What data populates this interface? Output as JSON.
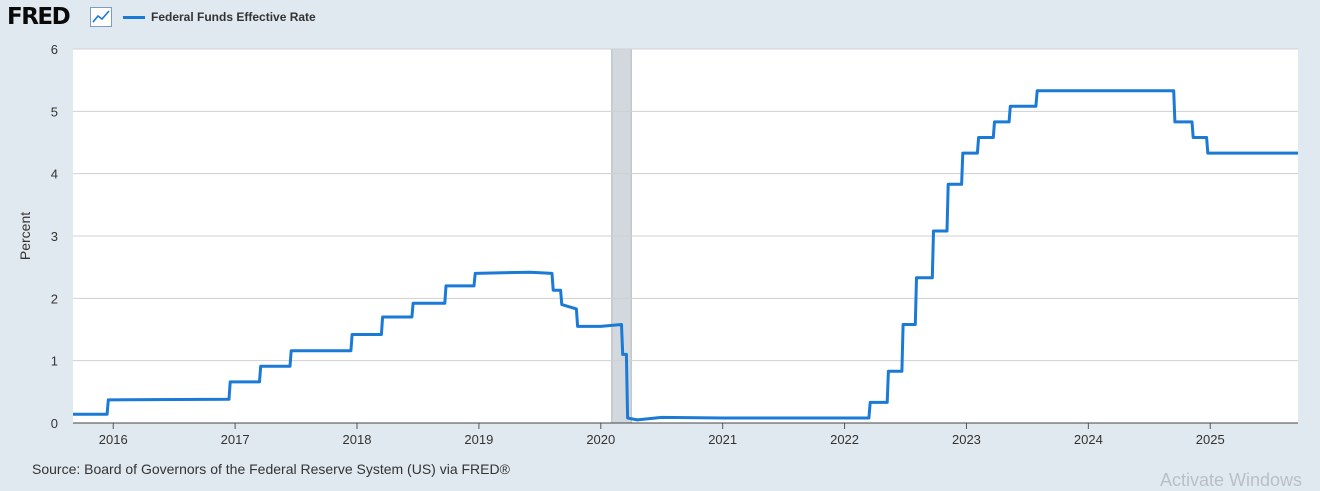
{
  "logo": {
    "text": "FRED",
    "icon": "line-chart-icon"
  },
  "colors": {
    "series": "#1a7ad5",
    "recession": "#d3d8de",
    "grid": "#d0d0d0",
    "background": "#e1e9f0",
    "plot": "#ffffff"
  },
  "chart_data": {
    "type": "line",
    "title": "",
    "ylabel": "Percent",
    "xlabel": "",
    "ylim": [
      0,
      6
    ],
    "yticks": [
      0,
      1,
      2,
      3,
      4,
      5,
      6
    ],
    "xlim": [
      2015.67,
      2025.72
    ],
    "xticks": [
      "2016",
      "2017",
      "2018",
      "2019",
      "2020",
      "2021",
      "2022",
      "2023",
      "2024",
      "2025"
    ],
    "grid": true,
    "legend_position": "top-left",
    "recession_shading": [
      {
        "start": 2020.09,
        "end": 2020.25
      }
    ],
    "series": [
      {
        "name": "Federal Funds Effective Rate",
        "x": [
          2015.67,
          2015.95,
          2015.96,
          2016.95,
          2016.96,
          2017.2,
          2017.21,
          2017.45,
          2017.46,
          2017.95,
          2017.96,
          2018.2,
          2018.21,
          2018.45,
          2018.46,
          2018.72,
          2018.73,
          2018.96,
          2018.97,
          2019.42,
          2019.6,
          2019.61,
          2019.67,
          2019.68,
          2019.8,
          2019.81,
          2020.0,
          2020.17,
          2020.18,
          2020.21,
          2020.22,
          2020.3,
          2020.5,
          2021.0,
          2021.5,
          2022.2,
          2022.21,
          2022.35,
          2022.36,
          2022.47,
          2022.48,
          2022.58,
          2022.59,
          2022.72,
          2022.73,
          2022.84,
          2022.85,
          2022.96,
          2022.97,
          2023.09,
          2023.1,
          2023.22,
          2023.23,
          2023.35,
          2023.36,
          2023.57,
          2023.58,
          2024.7,
          2024.71,
          2024.85,
          2024.86,
          2024.97,
          2024.98,
          2025.72
        ],
        "y": [
          0.14,
          0.14,
          0.37,
          0.38,
          0.66,
          0.66,
          0.91,
          0.91,
          1.16,
          1.16,
          1.42,
          1.42,
          1.7,
          1.7,
          1.92,
          1.92,
          2.2,
          2.2,
          2.4,
          2.42,
          2.4,
          2.13,
          2.13,
          1.9,
          1.83,
          1.55,
          1.55,
          1.58,
          1.1,
          1.1,
          0.08,
          0.05,
          0.09,
          0.08,
          0.08,
          0.08,
          0.33,
          0.33,
          0.83,
          0.83,
          1.58,
          1.58,
          2.33,
          2.33,
          3.08,
          3.08,
          3.83,
          3.83,
          4.33,
          4.33,
          4.58,
          4.58,
          4.83,
          4.83,
          5.08,
          5.08,
          5.33,
          5.33,
          4.83,
          4.83,
          4.58,
          4.58,
          4.33,
          4.33
        ]
      }
    ]
  },
  "source_text": "Source: Board of Governors of the Federal Reserve System (US) via FRED®",
  "watermark_text": "Activate Windows"
}
